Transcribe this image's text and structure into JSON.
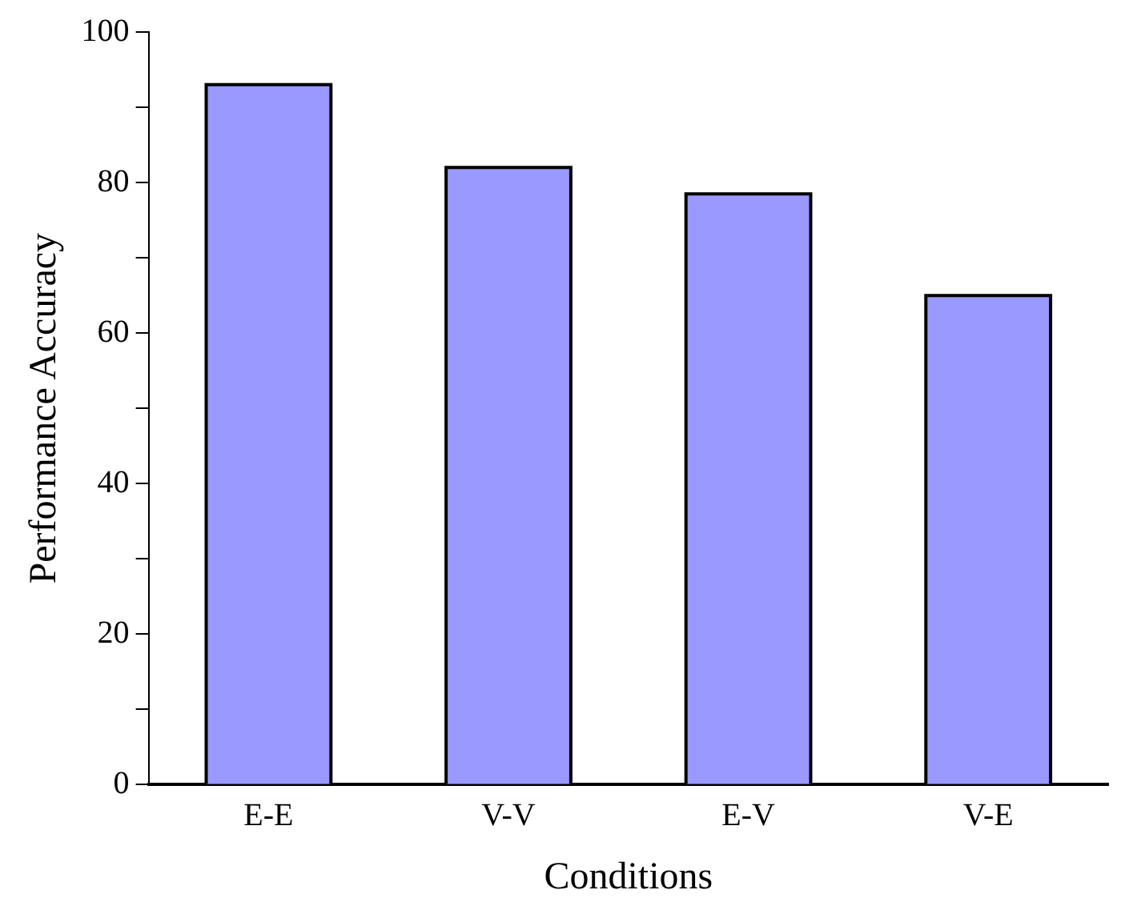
{
  "chart_data": {
    "type": "bar",
    "xlabel": "Conditions",
    "ylabel": "Performance Accuracy",
    "categories": [
      "E-E",
      "V-V",
      "E-V",
      "V-E"
    ],
    "values": [
      93,
      82,
      78.5,
      65
    ],
    "color": "#9999ff",
    "ylim": [
      0,
      100
    ],
    "yticks": [
      0,
      {
        "value": 10,
        "label": null
      },
      20,
      {
        "value": 30,
        "label": null
      },
      40,
      {
        "value": 50,
        "label": null
      },
      60,
      {
        "value": 70,
        "label": null
      },
      80,
      {
        "value": 90,
        "label": null
      },
      100
    ],
    "grid": false,
    "legend": false
  }
}
